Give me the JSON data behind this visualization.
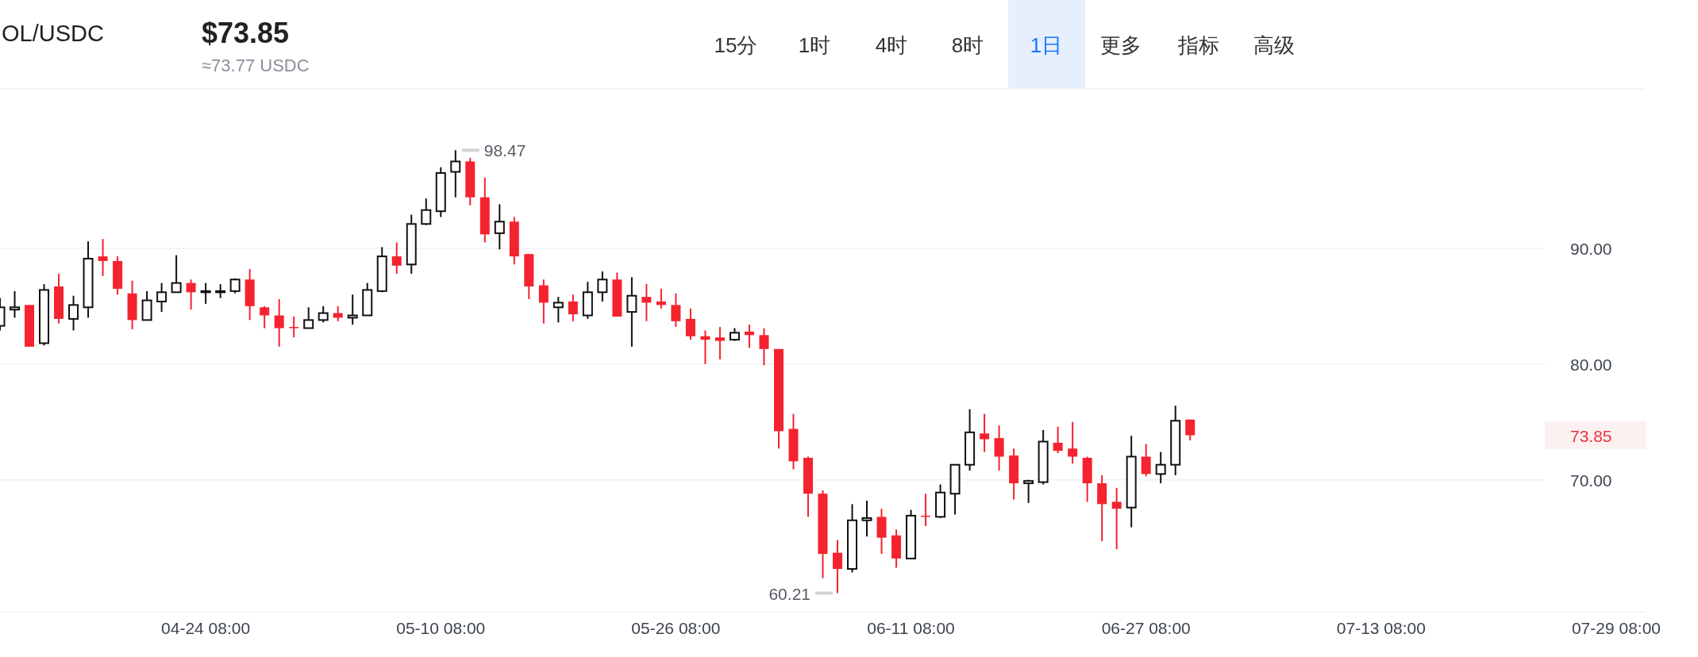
{
  "chart_data": {
    "type": "candlestick",
    "title": "OL/USDC",
    "subtitle": "$73.85",
    "annotations": [
      "≈73.77 USDC",
      "15分",
      "1时",
      "4时",
      "8时",
      "1日",
      "更多",
      "指标",
      "高级",
      {
        "text": "98.47",
        "x": "--05-11",
        "y": 98.47
      },
      {
        "text": "60.21",
        "x": "--06-06",
        "y": 60.21
      }
    ],
    "x": [
      "--04-10",
      "--04-11",
      "--04-12",
      "--04-13",
      "--04-14",
      "--04-15",
      "--04-16",
      "--04-17",
      "--04-18",
      "--04-19",
      "--04-20",
      "--04-21",
      "--04-22",
      "--04-23",
      "--04-24",
      "--04-25",
      "--04-26",
      "--04-27",
      "--04-28",
      "--04-29",
      "--04-30",
      "--05-01",
      "--05-02",
      "--05-03",
      "--05-04",
      "--05-05",
      "--05-06",
      "--05-07",
      "--05-08",
      "--05-09",
      "--05-10",
      "--05-11",
      "--05-12",
      "--05-13",
      "--05-14",
      "--05-15",
      "--05-16",
      "--05-17",
      "--05-18",
      "--05-19",
      "--05-20",
      "--05-21",
      "--05-22",
      "--05-23",
      "--05-24",
      "--05-25",
      "--05-26",
      "--05-27",
      "--05-28",
      "--05-29",
      "--05-30",
      "--05-31",
      "--06-01",
      "--06-02",
      "--06-03",
      "--06-04",
      "--06-05",
      "--06-06",
      "--06-07",
      "--06-08",
      "--06-09",
      "--06-10",
      "--06-11",
      "--06-12",
      "--06-13",
      "--06-14",
      "--06-15",
      "--06-16",
      "--06-17",
      "--06-18",
      "--06-19",
      "--06-20",
      "--06-21",
      "--06-22",
      "--06-23",
      "--06-24",
      "--06-25",
      "--06-26",
      "--06-27",
      "--06-28",
      "--06-29",
      "--06-30"
    ],
    "ohlc": [
      [
        83.3,
        85.7,
        82.9,
        84.9
      ],
      [
        84.7,
        86.3,
        84.0,
        84.9
      ],
      [
        85.1,
        85.1,
        81.5,
        81.5
      ],
      [
        81.8,
        86.9,
        81.6,
        86.4
      ],
      [
        86.7,
        87.8,
        83.5,
        83.9
      ],
      [
        83.9,
        85.9,
        82.9,
        85.1
      ],
      [
        84.9,
        90.6,
        84.0,
        89.1
      ],
      [
        89.3,
        90.8,
        87.6,
        88.9
      ],
      [
        88.9,
        89.3,
        86.0,
        86.5
      ],
      [
        86.1,
        87.2,
        83.0,
        83.8
      ],
      [
        83.8,
        86.3,
        83.8,
        85.5
      ],
      [
        85.4,
        87.0,
        84.5,
        86.2
      ],
      [
        86.2,
        89.4,
        86.2,
        87.0
      ],
      [
        87.0,
        87.3,
        84.7,
        86.2
      ],
      [
        86.2,
        87.0,
        85.2,
        86.3
      ],
      [
        86.2,
        86.9,
        85.7,
        86.3
      ],
      [
        86.3,
        87.4,
        86.1,
        87.3
      ],
      [
        87.3,
        88.2,
        83.8,
        85.0
      ],
      [
        84.9,
        85.0,
        83.1,
        84.2
      ],
      [
        84.2,
        85.6,
        81.5,
        83.1
      ],
      [
        83.2,
        84.1,
        82.3,
        83.1
      ],
      [
        83.1,
        84.9,
        83.1,
        83.8
      ],
      [
        83.8,
        85.0,
        83.6,
        84.4
      ],
      [
        84.4,
        85.0,
        83.7,
        84.0
      ],
      [
        84.0,
        86.0,
        83.4,
        84.2
      ],
      [
        84.2,
        87.0,
        84.2,
        86.4
      ],
      [
        86.3,
        90.1,
        86.2,
        89.3
      ],
      [
        89.3,
        90.5,
        87.8,
        88.5
      ],
      [
        88.6,
        92.9,
        87.8,
        92.1
      ],
      [
        92.1,
        94.3,
        92.0,
        93.3
      ],
      [
        93.2,
        97.0,
        92.7,
        96.5
      ],
      [
        96.6,
        98.47,
        94.4,
        97.5
      ],
      [
        97.5,
        97.8,
        93.7,
        94.4
      ],
      [
        94.4,
        96.1,
        90.5,
        91.2
      ],
      [
        91.3,
        93.8,
        89.9,
        92.3
      ],
      [
        92.3,
        92.7,
        88.6,
        89.3
      ],
      [
        89.5,
        89.5,
        85.6,
        86.7
      ],
      [
        86.8,
        87.3,
        83.5,
        85.3
      ],
      [
        84.9,
        85.8,
        83.6,
        85.3
      ],
      [
        85.4,
        86.0,
        83.7,
        84.3
      ],
      [
        84.2,
        87.1,
        83.9,
        86.2
      ],
      [
        86.2,
        88.0,
        85.4,
        87.3
      ],
      [
        87.3,
        87.9,
        84.1,
        84.1
      ],
      [
        84.5,
        87.5,
        81.5,
        85.9
      ],
      [
        85.8,
        86.9,
        83.7,
        85.3
      ],
      [
        85.4,
        86.5,
        84.8,
        85.1
      ],
      [
        85.1,
        86.1,
        83.2,
        83.7
      ],
      [
        83.9,
        84.8,
        82.1,
        82.4
      ],
      [
        82.4,
        82.9,
        80.0,
        82.1
      ],
      [
        82.3,
        83.2,
        80.4,
        82.0
      ],
      [
        82.1,
        83.1,
        82.0,
        82.7
      ],
      [
        82.8,
        83.4,
        81.4,
        82.5
      ],
      [
        82.5,
        83.1,
        79.9,
        81.3
      ],
      [
        81.3,
        81.3,
        72.7,
        74.2
      ],
      [
        74.4,
        75.7,
        70.9,
        71.6
      ],
      [
        71.9,
        72.0,
        66.8,
        68.8
      ],
      [
        68.8,
        69.1,
        61.5,
        63.6
      ],
      [
        63.7,
        64.8,
        60.21,
        62.3
      ],
      [
        62.3,
        67.9,
        62.0,
        66.5
      ],
      [
        66.5,
        68.2,
        65.1,
        66.7
      ],
      [
        66.8,
        67.5,
        63.6,
        65.0
      ],
      [
        65.2,
        65.7,
        62.4,
        63.2
      ],
      [
        63.2,
        67.4,
        63.2,
        66.9
      ],
      [
        66.9,
        68.8,
        66.0,
        66.8
      ],
      [
        66.8,
        69.6,
        66.7,
        68.9
      ],
      [
        68.8,
        71.3,
        67.0,
        71.3
      ],
      [
        71.3,
        76.1,
        70.8,
        74.1
      ],
      [
        74.0,
        75.7,
        72.4,
        73.5
      ],
      [
        73.6,
        74.7,
        70.8,
        72.0
      ],
      [
        72.1,
        72.7,
        68.3,
        69.7
      ],
      [
        69.7,
        70.0,
        68.0,
        69.9
      ],
      [
        69.8,
        74.3,
        69.6,
        73.3
      ],
      [
        73.2,
        74.6,
        72.3,
        72.5
      ],
      [
        72.7,
        75.0,
        71.4,
        72.0
      ],
      [
        71.9,
        72.0,
        68.1,
        69.7
      ],
      [
        69.7,
        70.4,
        64.7,
        67.9
      ],
      [
        68.1,
        69.3,
        64.0,
        67.5
      ],
      [
        67.6,
        73.8,
        65.9,
        72.0
      ],
      [
        72.0,
        73.1,
        70.3,
        70.5
      ],
      [
        70.5,
        72.4,
        69.7,
        71.3
      ],
      [
        71.3,
        76.4,
        70.4,
        75.1
      ],
      [
        75.2,
        75.2,
        73.4,
        73.85
      ]
    ],
    "colors": [
      "#111111",
      "#111111",
      "#f4232f",
      "#111111",
      "#f4232f",
      "#111111",
      "#111111",
      "#f4232f",
      "#f4232f",
      "#f4232f",
      "#111111",
      "#111111",
      "#111111",
      "#f4232f",
      "#111111",
      "#111111",
      "#111111",
      "#f4232f",
      "#f4232f",
      "#f4232f",
      "#f4232f",
      "#111111",
      "#111111",
      "#f4232f",
      "#111111",
      "#111111",
      "#111111",
      "#f4232f",
      "#111111",
      "#111111",
      "#111111",
      "#111111",
      "#f4232f",
      "#f4232f",
      "#111111",
      "#f4232f",
      "#f4232f",
      "#f4232f",
      "#111111",
      "#f4232f",
      "#111111",
      "#111111",
      "#f4232f",
      "#111111",
      "#f4232f",
      "#f4232f",
      "#f4232f",
      "#f4232f",
      "#f4232f",
      "#f4232f",
      "#111111",
      "#f4232f",
      "#f4232f",
      "#f4232f",
      "#f4232f",
      "#f4232f",
      "#f4232f",
      "#f4232f",
      "#111111",
      "#111111",
      "#f4232f",
      "#f4232f",
      "#111111",
      "#f4232f",
      "#111111",
      "#111111",
      "#111111",
      "#f4232f",
      "#f4232f",
      "#f4232f",
      "#111111",
      "#111111",
      "#f4232f",
      "#f4232f",
      "#f4232f",
      "#f4232f",
      "#f4232f",
      "#111111",
      "#f4232f",
      "#111111",
      "#111111",
      "#f4232f"
    ],
    "xlim": [
      "--04-10",
      "--07-31"
    ],
    "xticks": [
      {
        "value": "--04-24",
        "label": "04-24 08:00"
      },
      {
        "value": "--05-10",
        "label": "05-10 08:00"
      },
      {
        "value": "--05-26",
        "label": "05-26 08:00"
      },
      {
        "value": "--06-11",
        "label": "06-11 08:00"
      },
      {
        "value": "--06-27",
        "label": "06-27 08:00"
      },
      {
        "value": "--07-13",
        "label": "07-13 08:00"
      },
      {
        "value": "--07-29",
        "label": "07-29 08:00"
      }
    ],
    "ylim": [
      58.6,
      103.7
    ],
    "yticks": [
      {
        "value": 70,
        "label": "70.00"
      },
      {
        "value": 80,
        "label": "80.00"
      },
      {
        "value": 90,
        "label": "90.00"
      }
    ],
    "grid": "y",
    "ref_lines": [
      {
        "axis": "y",
        "value": 73.85,
        "label": "73.85",
        "color": "#fdf0f1"
      }
    ]
  }
}
